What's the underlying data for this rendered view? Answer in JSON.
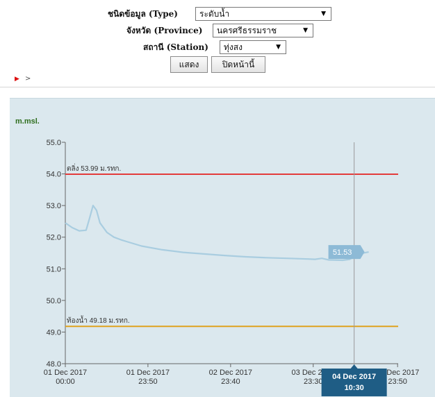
{
  "form": {
    "type_label": "ชนิดข้อมูล (Type)",
    "type_value": "ระดับน้ำ",
    "province_label": "จังหวัด (Province)",
    "province_value": "นครศรีธรรมราช",
    "station_label": "สถานี (Station)",
    "station_value": "ทุ่งสง",
    "show_button": "แสดง",
    "close_button": "ปิดหน้านี้",
    "dropdown_arrow": "▼"
  },
  "nav": {
    "play_symbol": "▶",
    "next_symbol": ">"
  },
  "colors": {
    "panel_bg": "#dbe8ee",
    "series": "#a9cde0",
    "bank_line": "#e33b3b",
    "bed_line": "#e0a21e",
    "tooltip": "#1f5d85",
    "value_badge": "#8dbad6"
  },
  "chart_data": {
    "type": "line",
    "ylabel": "m.msl.",
    "ylim": [
      48.0,
      55.0
    ],
    "y_ticks": [
      "55.0",
      "54.0",
      "53.0",
      "52.0",
      "51.0",
      "50.0",
      "49.0",
      "48.0"
    ],
    "x_ticks": [
      {
        "date": "01 Dec 2017",
        "time": "00:00"
      },
      {
        "date": "01 Dec 2017",
        "time": "23:50"
      },
      {
        "date": "02 Dec 2017",
        "time": "23:40"
      },
      {
        "date": "03 Dec 2017",
        "time": "23:30"
      },
      {
        "date": "04 Dec 2017",
        "time": "23:50"
      }
    ],
    "x_tick_hours": [
      0,
      23.83,
      47.67,
      71.5,
      95.83
    ],
    "x_max_hours": 96,
    "reference_lines": [
      {
        "label": "ตลิ่ง 53.99 ม.รทก.",
        "value": 53.99,
        "color": "#e33b3b"
      },
      {
        "label": "ท้องน้ำ 49.18 ม.รทก.",
        "value": 49.18,
        "color": "#e0a21e"
      }
    ],
    "series": [
      {
        "points": [
          [
            0,
            52.45
          ],
          [
            2,
            52.3
          ],
          [
            4,
            52.2
          ],
          [
            6,
            52.22
          ],
          [
            7,
            52.6
          ],
          [
            8,
            53.0
          ],
          [
            9,
            52.85
          ],
          [
            10,
            52.45
          ],
          [
            12,
            52.15
          ],
          [
            14,
            52.0
          ],
          [
            16,
            51.92
          ],
          [
            18,
            51.85
          ],
          [
            22,
            51.72
          ],
          [
            28,
            51.6
          ],
          [
            34,
            51.52
          ],
          [
            40,
            51.47
          ],
          [
            46,
            51.42
          ],
          [
            52,
            51.38
          ],
          [
            58,
            51.35
          ],
          [
            64,
            51.33
          ],
          [
            70,
            51.31
          ],
          [
            72,
            51.3
          ],
          [
            74,
            51.33
          ],
          [
            76,
            51.28
          ],
          [
            80,
            51.27
          ],
          [
            82,
            51.3
          ],
          [
            84,
            51.42
          ],
          [
            86,
            51.5
          ],
          [
            87.5,
            51.53
          ]
        ]
      }
    ],
    "last_value_label": "51.53",
    "last_value": 51.53,
    "last_value_hour": 87.5,
    "tooltip": {
      "date": "04 Dec 2017",
      "time": "10:30",
      "hour": 82.5
    },
    "grid": false
  }
}
